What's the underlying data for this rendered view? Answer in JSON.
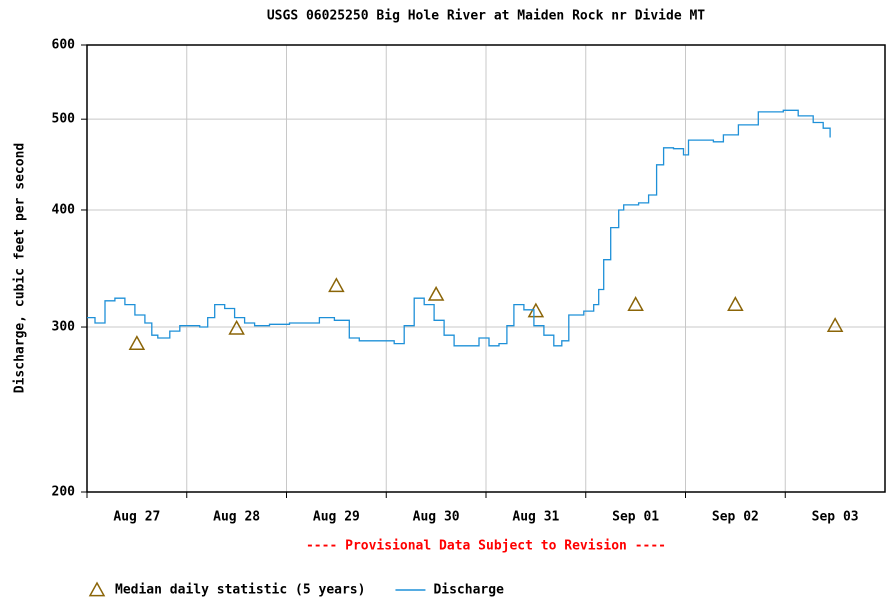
{
  "chart_data": {
    "type": "line",
    "title": "USGS 06025250 Big Hole River at Maiden Rock nr Divide MT",
    "y_label": "Discharge, cubic feet per second",
    "annotation": "---- Provisional Data Subject to Revision ----",
    "log_y": true,
    "grid": true,
    "ylim": [
      200,
      600
    ],
    "yticks": [
      200,
      300,
      400,
      500,
      600
    ],
    "xlim": [
      0,
      8
    ],
    "xticks": [
      {
        "value": 0,
        "label": "Aug 27"
      },
      {
        "value": 1,
        "label": "Aug 28"
      },
      {
        "value": 2,
        "label": "Aug 29"
      },
      {
        "value": 3,
        "label": "Aug 30"
      },
      {
        "value": 4,
        "label": "Aug 31"
      },
      {
        "value": 5,
        "label": "Sep 01"
      },
      {
        "value": 6,
        "label": "Sep 02"
      },
      {
        "value": 7,
        "label": "Sep 03"
      }
    ],
    "series": [
      {
        "name": "Median daily statistic (5 years)",
        "color": "#8b6508",
        "marker": "triangle",
        "x": [
          0.5,
          1.5,
          2.5,
          3.5,
          4.5,
          5.5,
          6.5,
          7.5
        ],
        "values": [
          288,
          299,
          332,
          325,
          312,
          317,
          317,
          301
        ]
      },
      {
        "name": "Discharge",
        "color": "#1e90d8",
        "marker": "line",
        "x": [
          0,
          0.08,
          0.18,
          0.28,
          0.38,
          0.48,
          0.58,
          0.65,
          0.71,
          0.83,
          0.93,
          1.13,
          1.21,
          1.28,
          1.38,
          1.48,
          1.58,
          1.68,
          1.83,
          2.03,
          2.18,
          2.33,
          2.48,
          2.63,
          2.73,
          2.88,
          3.08,
          3.18,
          3.28,
          3.38,
          3.48,
          3.58,
          3.68,
          3.83,
          3.93,
          4.03,
          4.13,
          4.21,
          4.28,
          4.38,
          4.48,
          4.58,
          4.68,
          4.76,
          4.83,
          4.98,
          5.08,
          5.13,
          5.18,
          5.25,
          5.33,
          5.38,
          5.53,
          5.63,
          5.71,
          5.78,
          5.88,
          5.98,
          6.03,
          6.18,
          6.28,
          6.38,
          6.53,
          6.73,
          6.98,
          7.13,
          7.28,
          7.38,
          7.45
        ],
        "values": [
          307,
          303,
          320,
          322,
          317,
          309,
          303,
          294,
          292,
          297,
          301,
          300,
          307,
          317,
          314,
          307,
          303,
          301,
          302,
          303,
          303,
          307,
          305,
          292,
          290,
          290,
          288,
          301,
          322,
          317,
          305,
          294,
          286.5,
          286.5,
          292,
          286.5,
          288,
          301,
          317,
          313,
          301,
          294,
          286.5,
          290,
          309,
          312,
          317,
          329,
          354,
          383,
          400,
          405,
          407,
          415,
          447,
          466,
          465,
          458,
          475,
          475,
          473,
          481,
          493,
          509,
          511,
          504,
          496,
          489,
          478
        ]
      }
    ]
  }
}
